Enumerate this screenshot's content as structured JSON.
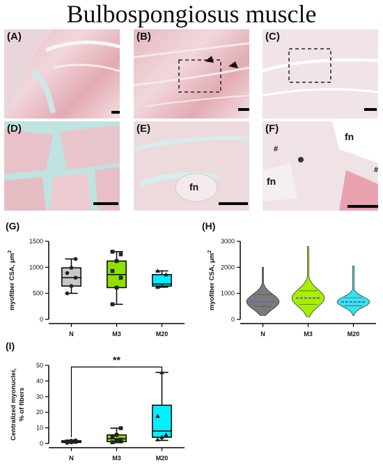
{
  "title": "Bulbospongiosus muscle",
  "panels": {
    "a": "(A)",
    "b": "(B)",
    "c": "(C)",
    "d": "(D)",
    "e": "(E)",
    "f": "(F)",
    "fn": "fn",
    "hash": "#"
  },
  "chart_data": [
    {
      "id": "G",
      "panel_label": "(G)",
      "type": "box",
      "ylabel_main": "myofiber CSA, μm",
      "ylabel_sup": "2",
      "categories": [
        "N",
        "M3",
        "M20"
      ],
      "colors": [
        "#c8c8c8",
        "#8fe000",
        "#00f0ff"
      ],
      "ylim": [
        0,
        1500
      ],
      "yticks": [
        0,
        500,
        1000,
        1500
      ],
      "boxes": [
        {
          "min": 500,
          "q1": 640,
          "median": 800,
          "q3": 990,
          "max": 1160,
          "points": [
            500,
            640,
            800,
            890,
            990,
            1160
          ]
        },
        {
          "min": 290,
          "q1": 610,
          "median": 860,
          "q3": 1120,
          "max": 1300,
          "points": [
            290,
            610,
            800,
            930,
            1120,
            1250,
            1300
          ]
        },
        {
          "min": 620,
          "q1": 640,
          "median": 680,
          "q3": 860,
          "max": 930,
          "points": [
            620,
            640,
            860,
            930
          ]
        }
      ]
    },
    {
      "id": "H",
      "panel_label": "(H)",
      "type": "violin",
      "ylabel_main": "myofiber CSA, μm",
      "ylabel_sup": "2",
      "categories": [
        "N",
        "M3",
        "M20"
      ],
      "colors": [
        "#7a7a7a",
        "#a6f000",
        "#33e6f0"
      ],
      "ylim": [
        0,
        3000
      ],
      "yticks": [
        0,
        1000,
        2000,
        3000
      ],
      "violins": [
        {
          "min": 150,
          "max": 2000,
          "median": 680,
          "q1": 500,
          "q3": 950
        },
        {
          "min": 100,
          "max": 2800,
          "median": 820,
          "q1": 580,
          "q3": 1100
        },
        {
          "min": 150,
          "max": 2050,
          "median": 670,
          "q1": 520,
          "q3": 830
        }
      ]
    },
    {
      "id": "I",
      "panel_label": "(I)",
      "type": "box",
      "ylabel_main": "Centralized myonuclei,",
      "ylabel_second": "% of fibers",
      "categories": [
        "N",
        "M3",
        "M20"
      ],
      "colors": [
        "#c8c8c8",
        "#8fe000",
        "#00f0ff"
      ],
      "ylim": [
        0,
        50
      ],
      "yticks": [
        0,
        10,
        20,
        30,
        40,
        50
      ],
      "boxes": [
        {
          "min": 0.3,
          "q1": 0.7,
          "median": 1.0,
          "q3": 1.8,
          "max": 2.2,
          "points": [
            0.4,
            0.7,
            1.0,
            1.2,
            1.8,
            2.0
          ]
        },
        {
          "min": 0.5,
          "q1": 1.2,
          "median": 3.0,
          "q3": 5.5,
          "max": 9.8,
          "points": [
            0.8,
            1.5,
            2.5,
            4.0,
            5.5,
            9.8
          ]
        },
        {
          "min": 2.0,
          "q1": 4.0,
          "median": 8.0,
          "q3": 24.5,
          "max": 45.5,
          "points": [
            2.5,
            4.0,
            5.5,
            17.5,
            45.5
          ]
        }
      ],
      "significance": {
        "from": "N",
        "to": "M20",
        "label": "**",
        "y": 49
      }
    }
  ]
}
